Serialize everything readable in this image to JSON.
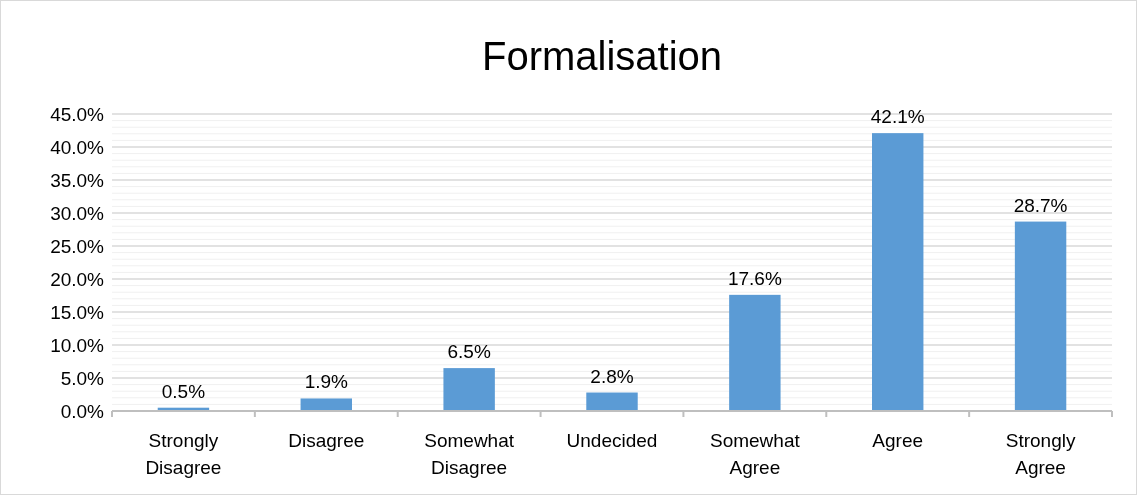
{
  "chart_data": {
    "type": "bar",
    "title": "Formalisation",
    "categories": [
      "Strongly Disagree",
      "Disagree",
      "Somewhat Disagree",
      "Undecided",
      "Somewhat Agree",
      "Agree",
      "Strongly Agree"
    ],
    "values": [
      0.5,
      1.9,
      6.5,
      2.8,
      17.6,
      42.1,
      28.7
    ],
    "value_labels": [
      "0.5%",
      "1.9%",
      "6.5%",
      "2.8%",
      "17.6%",
      "42.1%",
      "28.7%"
    ],
    "color": "#5b9bd5",
    "ylim": [
      0,
      45
    ],
    "yticks": [
      {
        "value": 0,
        "label": "0.0%"
      },
      {
        "value": 1,
        "label": null
      },
      {
        "value": 2,
        "label": null
      },
      {
        "value": 3,
        "label": null
      },
      {
        "value": 4,
        "label": null
      },
      {
        "value": 5,
        "label": "5.0%"
      },
      {
        "value": 6,
        "label": null
      },
      {
        "value": 7,
        "label": null
      },
      {
        "value": 8,
        "label": null
      },
      {
        "value": 9,
        "label": null
      },
      {
        "value": 10,
        "label": "10.0%"
      },
      {
        "value": 11,
        "label": null
      },
      {
        "value": 12,
        "label": null
      },
      {
        "value": 13,
        "label": null
      },
      {
        "value": 14,
        "label": null
      },
      {
        "value": 15,
        "label": "15.0%"
      },
      {
        "value": 16,
        "label": null
      },
      {
        "value": 17,
        "label": null
      },
      {
        "value": 18,
        "label": null
      },
      {
        "value": 19,
        "label": null
      },
      {
        "value": 20,
        "label": "20.0%"
      },
      {
        "value": 21,
        "label": null
      },
      {
        "value": 22,
        "label": null
      },
      {
        "value": 23,
        "label": null
      },
      {
        "value": 24,
        "label": null
      },
      {
        "value": 25,
        "label": "25.0%"
      },
      {
        "value": 26,
        "label": null
      },
      {
        "value": 27,
        "label": null
      },
      {
        "value": 28,
        "label": null
      },
      {
        "value": 29,
        "label": null
      },
      {
        "value": 30,
        "label": "30.0%"
      },
      {
        "value": 31,
        "label": null
      },
      {
        "value": 32,
        "label": null
      },
      {
        "value": 33,
        "label": null
      },
      {
        "value": 34,
        "label": null
      },
      {
        "value": 35,
        "label": "35.0%"
      },
      {
        "value": 36,
        "label": null
      },
      {
        "value": 37,
        "label": null
      },
      {
        "value": 38,
        "label": null
      },
      {
        "value": 39,
        "label": null
      },
      {
        "value": 40,
        "label": "40.0%"
      },
      {
        "value": 41,
        "label": null
      },
      {
        "value": 42,
        "label": null
      },
      {
        "value": 43,
        "label": null
      },
      {
        "value": 44,
        "label": null
      },
      {
        "value": 45,
        "label": "45.0%"
      }
    ],
    "grid": "y"
  }
}
